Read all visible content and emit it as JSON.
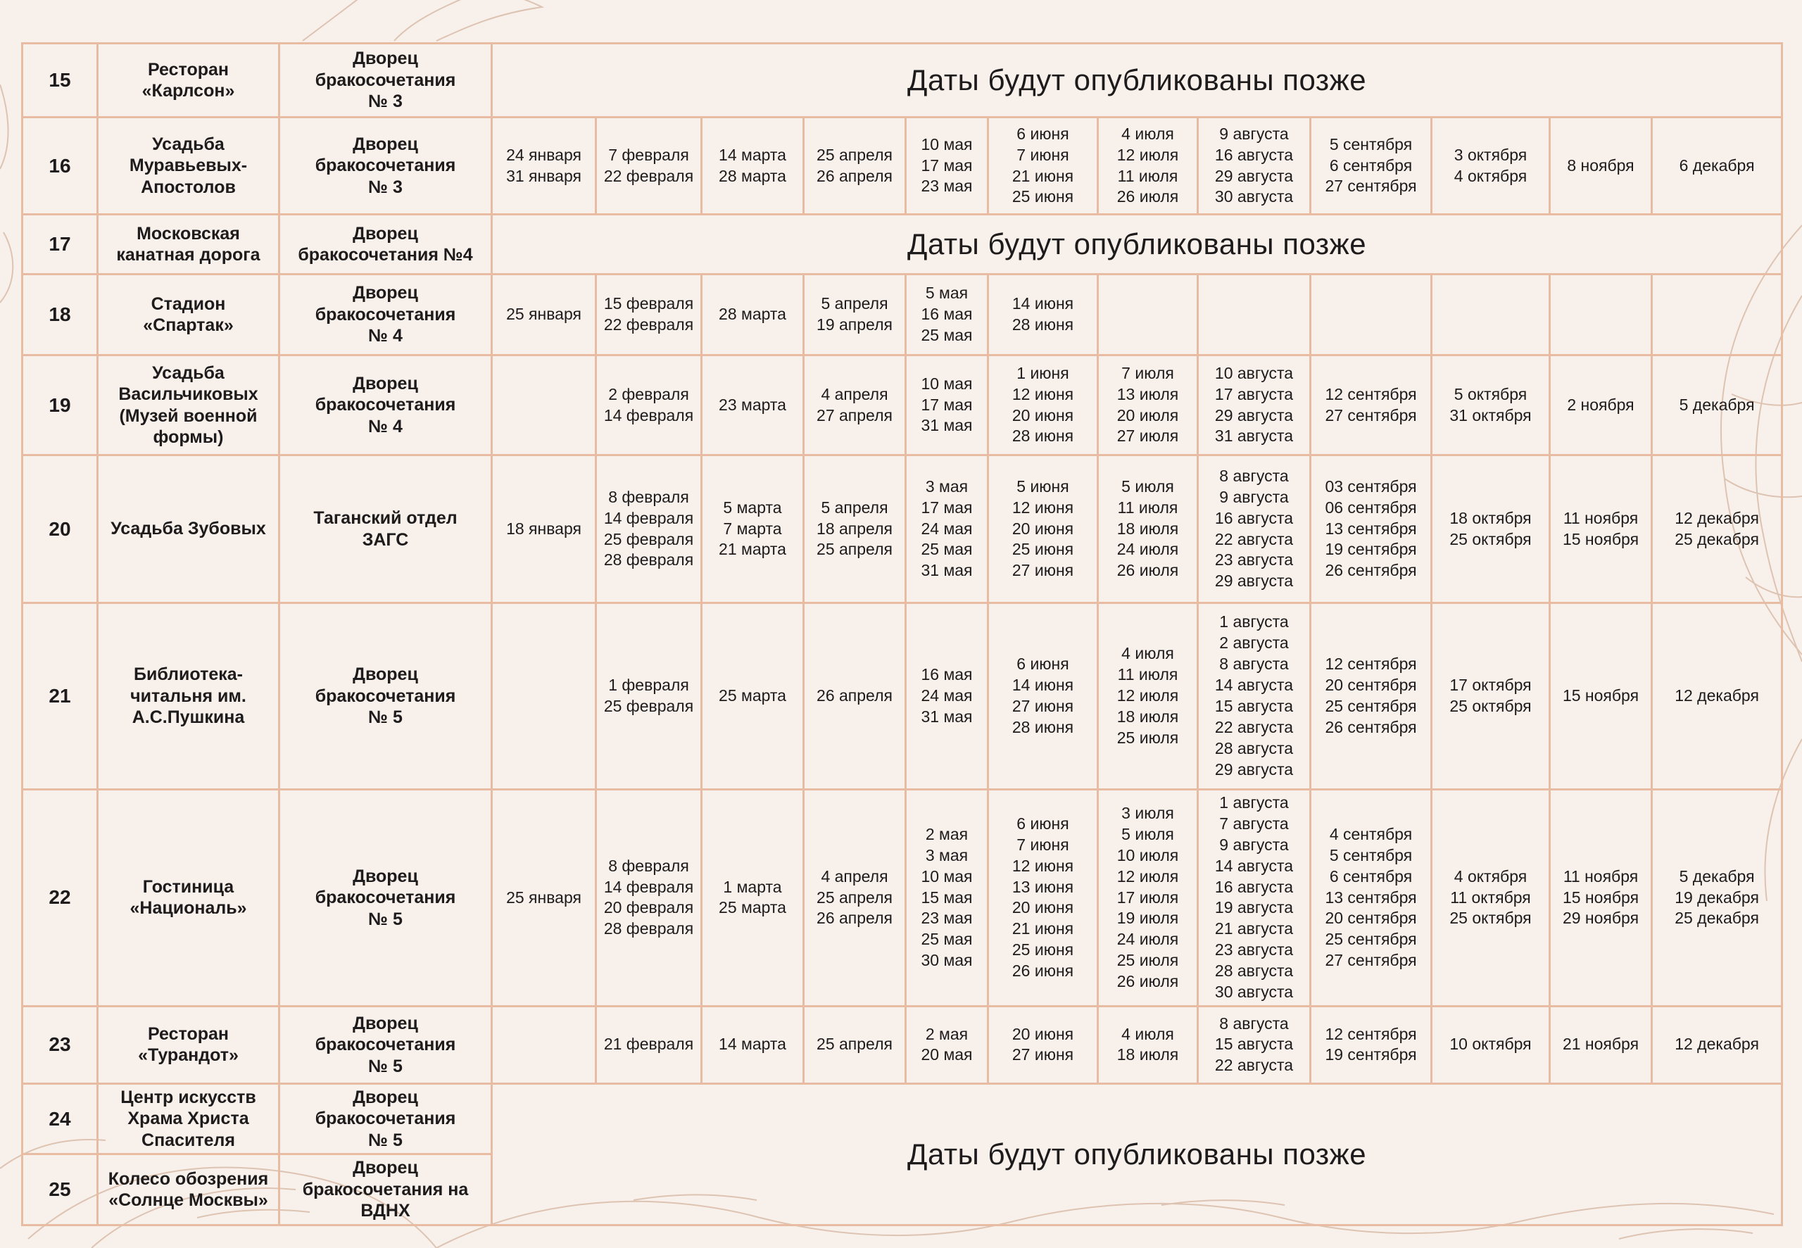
{
  "published_later_text": "Даты будут опубликованы позже",
  "colors": {
    "background": "#f8f0ea",
    "table_border": "#e8bca2",
    "text": "#1d1b1c",
    "flourish_line": "#d9bca9"
  },
  "rows": [
    {
      "num": "15",
      "venue": "Ресторан\n«Карлсон»",
      "palace": "Дворец\nбракосочетания\n№ 3",
      "type": "later"
    },
    {
      "num": "16",
      "venue": "Усадьба\nМуравьевых-\nАпостолов",
      "palace": "Дворец\nбракосочетания\n№ 3",
      "type": "dates",
      "months": [
        [
          "24 января",
          "31 января"
        ],
        [
          "7 февраля",
          "22 февраля"
        ],
        [
          "14 марта",
          "28 марта"
        ],
        [
          "25 апреля",
          "26 апреля"
        ],
        [
          "10 мая",
          "17 мая",
          "23 мая"
        ],
        [
          "6 июня",
          "7 июня",
          "21 июня",
          "25 июня"
        ],
        [
          "4 июля",
          "12 июля",
          "11 июля",
          "26 июля"
        ],
        [
          "9 августа",
          "16 августа",
          "29 августа",
          "30 августа"
        ],
        [
          "5 сентября",
          "6 сентября",
          "27 сентября"
        ],
        [
          "3 октября",
          "4 октября"
        ],
        [
          "8 ноября"
        ],
        [
          "6 декабря"
        ]
      ]
    },
    {
      "num": "17",
      "venue": "Московская\nканатная дорога",
      "palace": "Дворец\nбракосочетания №4",
      "type": "later"
    },
    {
      "num": "18",
      "venue": "Стадион\n«Спартак»",
      "palace": "Дворец\nбракосочетания\n№ 4",
      "type": "dates",
      "months": [
        [
          "25 января"
        ],
        [
          "15 февраля",
          "22 февраля"
        ],
        [
          "28 марта"
        ],
        [
          "5 апреля",
          "19 апреля"
        ],
        [
          "5 мая",
          "16 мая",
          "25 мая"
        ],
        [
          "14 июня",
          "28 июня"
        ],
        [],
        [],
        [],
        [],
        [],
        []
      ]
    },
    {
      "num": "19",
      "venue": "Усадьба\nВасильчиковых\n(Музей военной\nформы)",
      "palace": "Дворец\nбракосочетания\n№ 4",
      "type": "dates",
      "months": [
        [],
        [
          "2 февраля",
          "14 февраля"
        ],
        [
          "23 марта"
        ],
        [
          "4 апреля",
          "27 апреля"
        ],
        [
          "10 мая",
          "17 мая",
          "31 мая"
        ],
        [
          "1 июня",
          "12 июня",
          "20 июня",
          "28 июня"
        ],
        [
          "7 июля",
          "13 июля",
          "20 июля",
          "27 июля"
        ],
        [
          "10 августа",
          "17 августа",
          "29 августа",
          "31 августа"
        ],
        [
          "12 сентября",
          "27 сентября"
        ],
        [
          "5 октября",
          "31 октября"
        ],
        [
          "2 ноября"
        ],
        [
          "5 декабря"
        ]
      ]
    },
    {
      "num": "20",
      "venue": "Усадьба Зубовых",
      "palace": "Таганский отдел\nЗАГС",
      "type": "dates",
      "months": [
        [
          "18 января"
        ],
        [
          "8 февраля",
          "14 февраля",
          "25 февраля",
          "28 февраля"
        ],
        [
          "5 марта",
          "7 марта",
          "21 марта"
        ],
        [
          "5 апреля",
          "18 апреля",
          "25 апреля"
        ],
        [
          "3 мая",
          "17 мая",
          "24 мая",
          "25 мая",
          "31 мая"
        ],
        [
          "5 июня",
          "12 июня",
          "20 июня",
          "25 июня",
          "27 июня"
        ],
        [
          "5 июля",
          "11 июля",
          "18 июля",
          "24 июля",
          "26 июля"
        ],
        [
          "8 августа",
          "9 августа",
          "16 августа",
          "22 августа",
          "23 августа",
          "29 августа"
        ],
        [
          "03 сентября",
          "06 сентября",
          "13 сентября",
          "19 сентября",
          "26 сентября"
        ],
        [
          "18 октября",
          "25 октября"
        ],
        [
          "11 ноября",
          "15 ноября"
        ],
        [
          "12 декабря",
          "25 декабря"
        ]
      ]
    },
    {
      "num": "21",
      "venue": "Библиотека-\nчитальня им.\nА.С.Пушкина",
      "palace": "Дворец\nбракосочетания\n№ 5",
      "type": "dates",
      "months": [
        [],
        [
          "1 февраля",
          "25 февраля"
        ],
        [
          "25 марта"
        ],
        [
          "26 апреля"
        ],
        [
          "16 мая",
          "24 мая",
          "31 мая"
        ],
        [
          "6 июня",
          "14 июня",
          "27 июня",
          "28 июня"
        ],
        [
          "4 июля",
          "11 июля",
          "12 июля",
          "18 июля",
          "25 июля"
        ],
        [
          "1 августа",
          "2 августа",
          "8 августа",
          "14 августа",
          "15 августа",
          "22 августа",
          "28 августа",
          "29 августа"
        ],
        [
          "12 сентября",
          "20 сентября",
          "25 сентября",
          "26 сентября"
        ],
        [
          "17 октября",
          "25 октября"
        ],
        [
          "15 ноября"
        ],
        [
          "12 декабря"
        ]
      ]
    },
    {
      "num": "22",
      "venue": "Гостиница\n«Националь»",
      "palace": "Дворец\nбракосочетания\n№ 5",
      "type": "dates",
      "months": [
        [
          "25 января"
        ],
        [
          "8 февраля",
          "14 февраля",
          "20 февраля",
          "28 февраля"
        ],
        [
          "1 марта",
          "25 марта"
        ],
        [
          "4 апреля",
          "25 апреля",
          "26 апреля"
        ],
        [
          "2 мая",
          "3 мая",
          "10 мая",
          "15 мая",
          "23 мая",
          "25 мая",
          "30 мая"
        ],
        [
          "6 июня",
          "7 июня",
          "12 июня",
          "13 июня",
          "20 июня",
          "21 июня",
          "25 июня",
          "26 июня"
        ],
        [
          "3 июля",
          "5 июля",
          "10 июля",
          "12 июля",
          "17 июля",
          "19 июля",
          "24 июля",
          "25 июля",
          "26 июля"
        ],
        [
          "1 августа",
          "7 августа",
          "9 августа",
          "14 августа",
          "16 августа",
          "19 августа",
          "21 августа",
          "23 августа",
          "28 августа",
          "30 августа"
        ],
        [
          "4 сентября",
          "5 сентября",
          "6 сентября",
          "13 сентября",
          "20 сентября",
          "25 сентября",
          "27 сентября"
        ],
        [
          "4 октября",
          "11 октября",
          "25 октября"
        ],
        [
          "11 ноября",
          "15 ноября",
          "29 ноября"
        ],
        [
          "5 декабря",
          "19 декабря",
          "25 декабря"
        ]
      ]
    },
    {
      "num": "23",
      "venue": "Ресторан\n«Турандот»",
      "palace": "Дворец\nбракосочетания\n№ 5",
      "type": "dates",
      "months": [
        [],
        [
          "21 февраля"
        ],
        [
          "14 марта"
        ],
        [
          "25 апреля"
        ],
        [
          "2 мая",
          "20 мая"
        ],
        [
          "20 июня",
          "27 июня"
        ],
        [
          "4 июля",
          "18 июля"
        ],
        [
          "8 августа",
          "15 августа",
          "22 августа"
        ],
        [
          "12 сентября",
          "19 сентября"
        ],
        [
          "10 октября"
        ],
        [
          "21 ноября"
        ],
        [
          "12 декабря"
        ]
      ]
    },
    {
      "num": "24",
      "venue": "Центр искусств\nХрама Христа\nСпасителя",
      "palace": "Дворец\nбракосочетания\n№ 5",
      "type": "later",
      "rowspan": 2
    },
    {
      "num": "25",
      "venue": "Колесо обозрения\n«Солнце Москвы»",
      "palace": "Дворец\nбракосочетания на\nВДНХ",
      "type": "continued"
    }
  ]
}
